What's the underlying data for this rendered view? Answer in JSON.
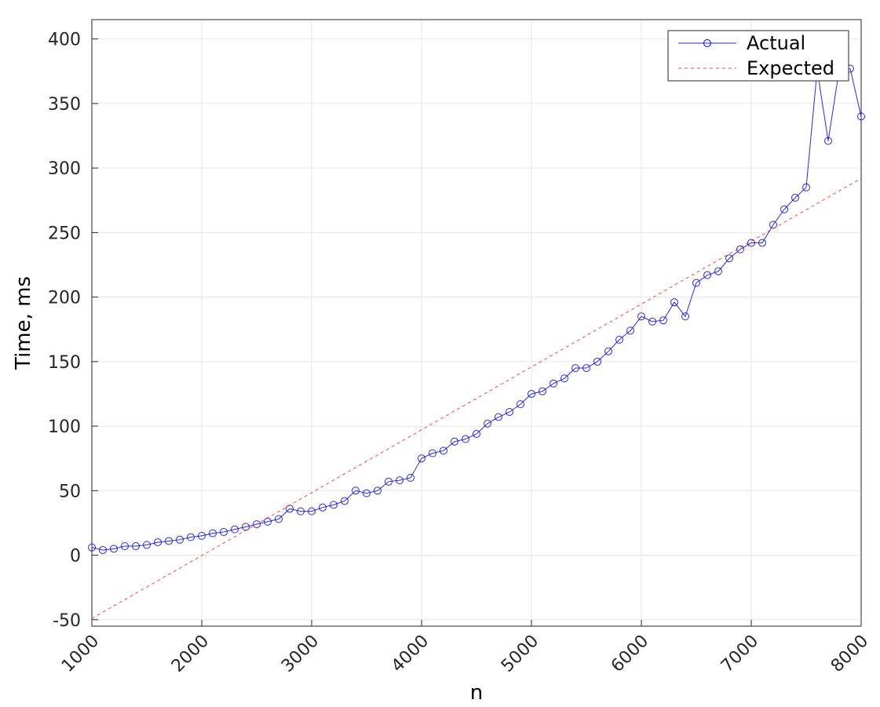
{
  "chart_data": {
    "type": "line",
    "title": "",
    "xlabel": "n",
    "ylabel": "Time, ms",
    "xlim": [
      1000,
      8000
    ],
    "ylim": [
      -55,
      415
    ],
    "xticks": [
      1000,
      2000,
      3000,
      4000,
      5000,
      6000,
      7000,
      8000
    ],
    "yticks": [
      -50,
      0,
      50,
      100,
      150,
      200,
      250,
      300,
      350,
      400
    ],
    "grid": true,
    "legend": "top-right",
    "series": [
      {
        "name": "Actual",
        "color": "#0000ff",
        "style": "solid",
        "marker": "circle",
        "x": [
          1000,
          1100,
          1200,
          1300,
          1400,
          1500,
          1600,
          1700,
          1800,
          1900,
          2000,
          2100,
          2200,
          2300,
          2400,
          2500,
          2600,
          2700,
          2800,
          2900,
          3000,
          3100,
          3200,
          3300,
          3400,
          3500,
          3600,
          3700,
          3800,
          3900,
          4000,
          4100,
          4200,
          4300,
          4400,
          4500,
          4600,
          4700,
          4800,
          4900,
          5000,
          5100,
          5200,
          5300,
          5400,
          5500,
          5600,
          5700,
          5800,
          5900,
          6000,
          6100,
          6200,
          6300,
          6400,
          6500,
          6600,
          6700,
          6800,
          6900,
          7000,
          7100,
          7200,
          7300,
          7400,
          7500,
          7600,
          7700,
          7800,
          7900,
          8000
        ],
        "y": [
          6,
          4,
          5,
          7,
          7,
          8,
          10,
          11,
          12,
          14,
          15,
          17,
          18,
          20,
          22,
          24,
          26,
          28,
          36,
          34,
          34,
          37,
          39,
          42,
          50,
          48,
          50,
          57,
          58,
          60,
          75,
          79,
          81,
          88,
          90,
          94,
          102,
          107,
          111,
          117,
          125,
          127,
          133,
          137,
          145,
          145,
          150,
          158,
          167,
          174,
          185,
          181,
          182,
          196,
          185,
          211,
          217,
          220,
          230,
          237,
          242,
          242,
          256,
          268,
          277,
          285,
          376,
          321,
          376,
          377,
          340
        ]
      },
      {
        "name": "Expected",
        "color": "#ff0000",
        "style": "dashed",
        "marker": "none",
        "x": [
          1000,
          8000
        ],
        "y": [
          -49,
          292
        ]
      }
    ]
  }
}
